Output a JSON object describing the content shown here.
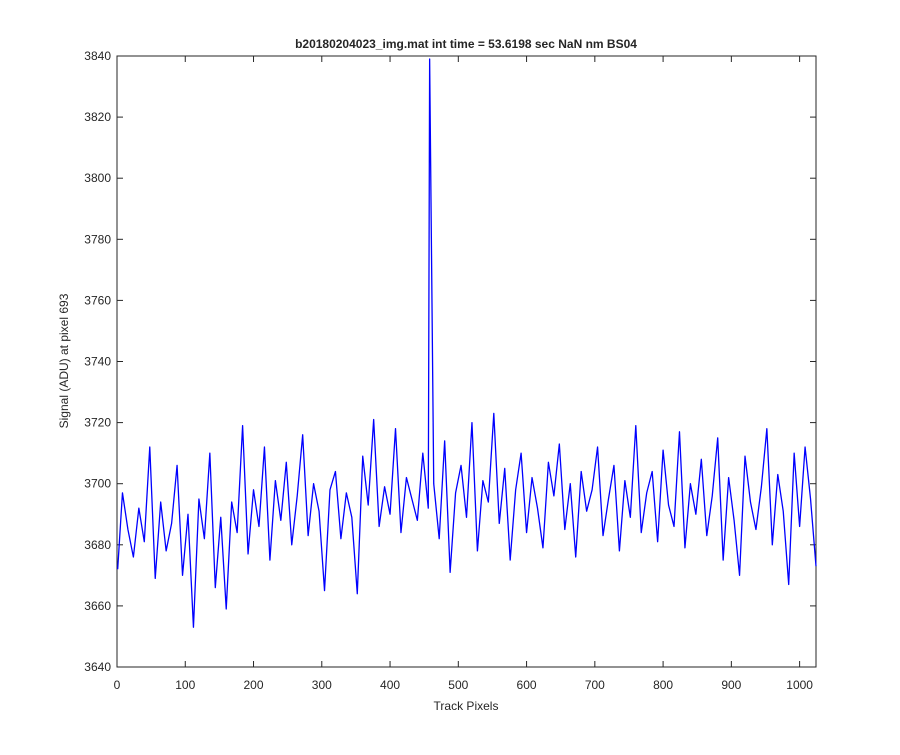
{
  "chart_data": {
    "type": "line",
    "title": "b20180204023_img.mat int time = 53.6198 sec  NaN nm BS04",
    "x_label": "Track Pixels",
    "y_label": "Signal (ADU) at pixel 693",
    "x": [
      1,
      8,
      16,
      24,
      32,
      40,
      48,
      56,
      64,
      72,
      80,
      88,
      96,
      104,
      112,
      120,
      128,
      136,
      144,
      152,
      160,
      168,
      176,
      184,
      192,
      200,
      208,
      216,
      224,
      232,
      240,
      248,
      256,
      264,
      272,
      280,
      288,
      296,
      304,
      312,
      320,
      328,
      336,
      344,
      352,
      360,
      368,
      376,
      384,
      392,
      400,
      408,
      416,
      424,
      432,
      440,
      448,
      456,
      458,
      464,
      472,
      480,
      488,
      496,
      504,
      512,
      520,
      528,
      536,
      544,
      552,
      560,
      568,
      576,
      584,
      592,
      600,
      608,
      616,
      624,
      632,
      640,
      648,
      656,
      664,
      672,
      680,
      688,
      696,
      704,
      712,
      720,
      728,
      736,
      744,
      752,
      760,
      768,
      776,
      784,
      792,
      800,
      808,
      816,
      824,
      832,
      840,
      848,
      856,
      864,
      872,
      880,
      888,
      896,
      904,
      912,
      920,
      928,
      936,
      944,
      952,
      960,
      968,
      976,
      984,
      992,
      1000,
      1008,
      1016,
      1024
    ],
    "series": [
      {
        "color": "#0000ff",
        "values": [
          3672,
          3697,
          3685,
          3676,
          3692,
          3681,
          3712,
          3669,
          3694,
          3678,
          3687,
          3706,
          3670,
          3690,
          3653,
          3695,
          3682,
          3710,
          3666,
          3689,
          3659,
          3694,
          3684,
          3719,
          3677,
          3698,
          3686,
          3712,
          3675,
          3701,
          3688,
          3707,
          3680,
          3696,
          3716,
          3683,
          3700,
          3691,
          3665,
          3698,
          3704,
          3682,
          3697,
          3689,
          3664,
          3709,
          3693,
          3721,
          3686,
          3699,
          3690,
          3718,
          3684,
          3702,
          3695,
          3688,
          3710,
          3692,
          3839,
          3700,
          3682,
          3714,
          3671,
          3697,
          3706,
          3689,
          3720,
          3678,
          3701,
          3694,
          3723,
          3687,
          3705,
          3675,
          3698,
          3710,
          3684,
          3702,
          3692,
          3679,
          3707,
          3696,
          3713,
          3685,
          3700,
          3676,
          3704,
          3691,
          3698,
          3712,
          3683,
          3695,
          3706,
          3678,
          3701,
          3689,
          3719,
          3684,
          3697,
          3704,
          3681,
          3711,
          3693,
          3686,
          3717,
          3679,
          3700,
          3690,
          3708,
          3683,
          3696,
          3715,
          3675,
          3702,
          3688,
          3670,
          3709,
          3694,
          3685,
          3699,
          3718,
          3680,
          3703,
          3691,
          3667,
          3710,
          3686,
          3712,
          3695,
          3673
        ]
      }
    ],
    "xlim": [
      0,
      1024
    ],
    "xticks": [
      0,
      100,
      200,
      300,
      400,
      500,
      600,
      700,
      800,
      900,
      1000
    ],
    "ylim": [
      3640,
      3840
    ],
    "yticks": [
      3640,
      3660,
      3680,
      3700,
      3720,
      3740,
      3760,
      3780,
      3800,
      3820,
      3840
    ]
  }
}
